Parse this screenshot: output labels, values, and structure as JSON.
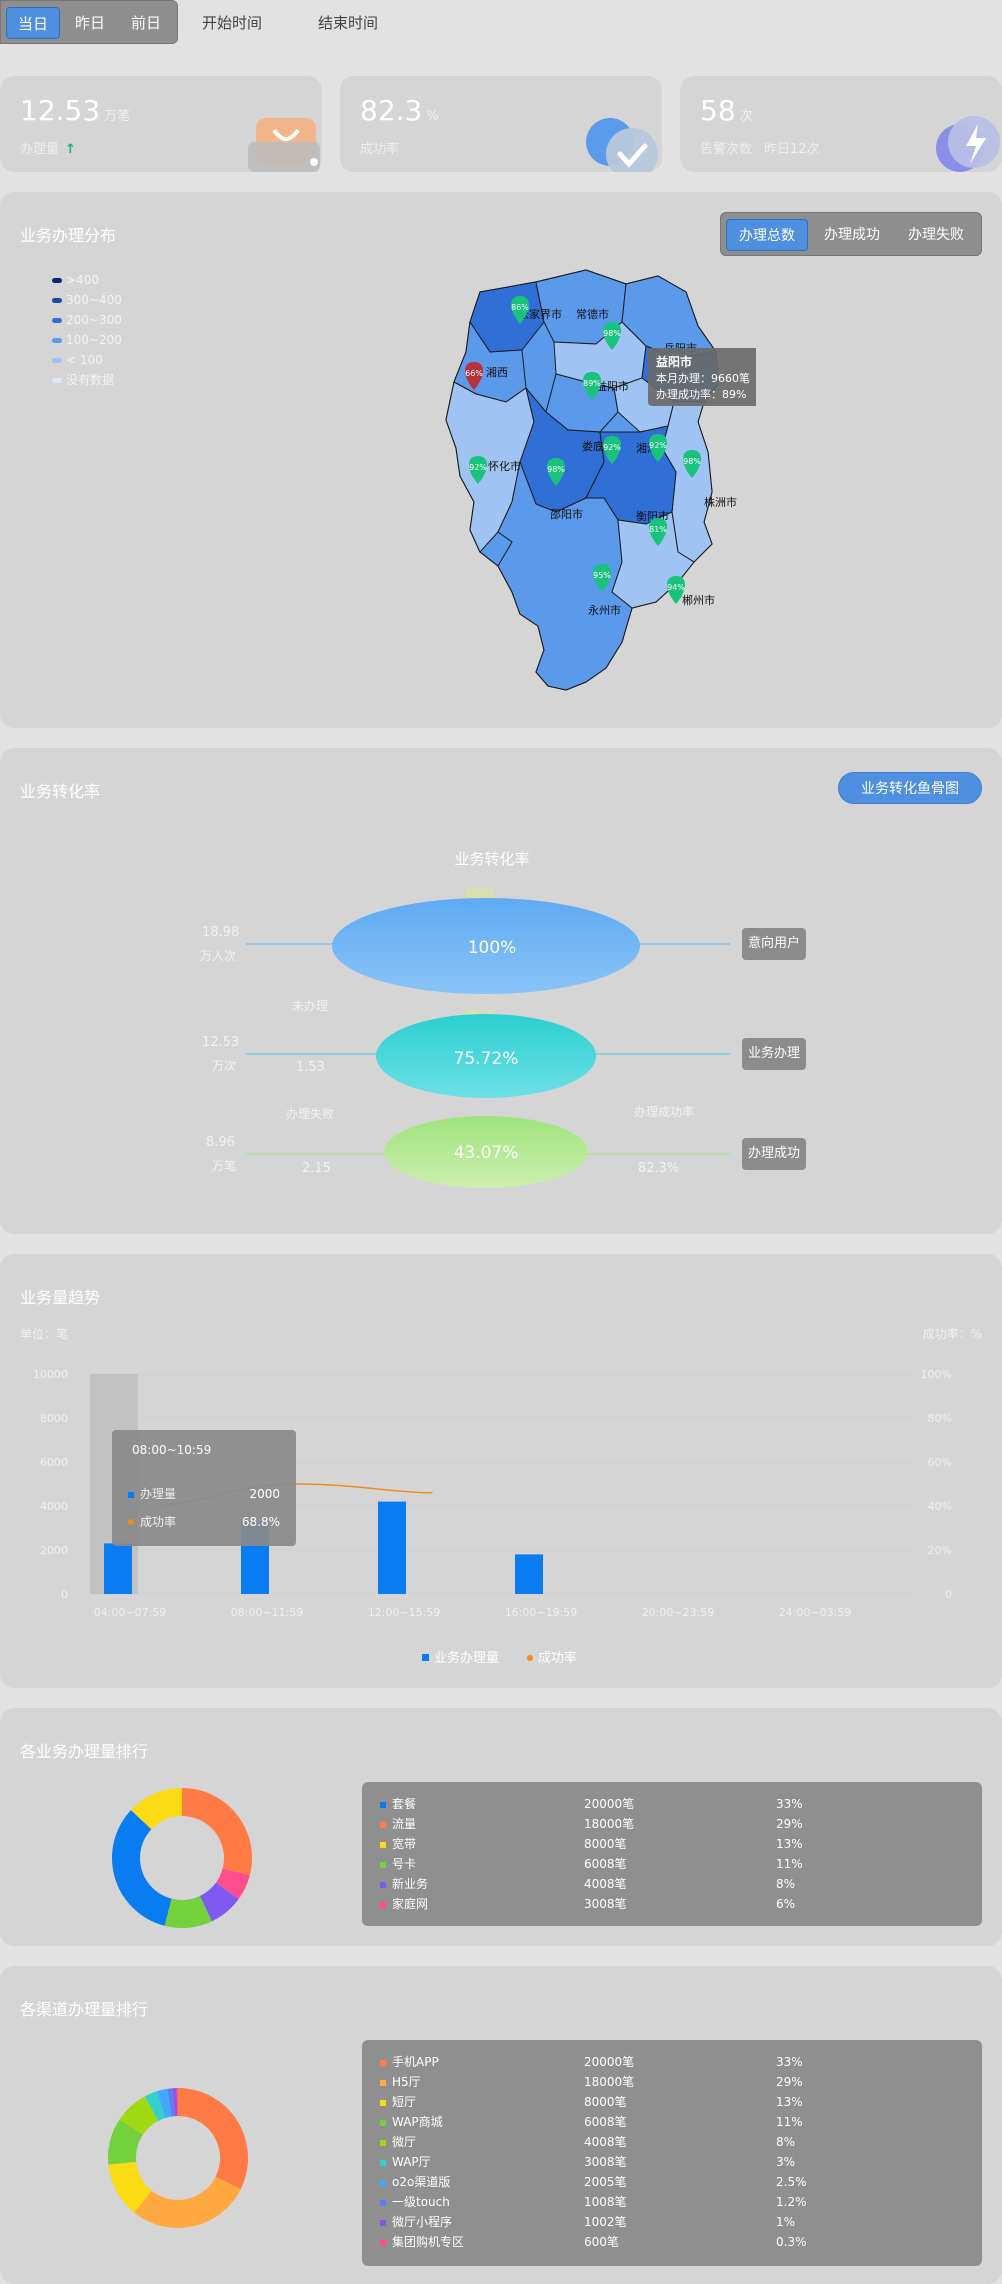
{
  "topbar": {
    "day_tabs": [
      "当日",
      "昨日",
      "前日"
    ],
    "start_label": "开始时间",
    "end_label": "结束时间"
  },
  "stats": [
    {
      "value": "12.53",
      "unit": "万笔",
      "label": "办理量",
      "extra": "",
      "icon": "shopping-bag-icon"
    },
    {
      "value": "82.3",
      "unit": "%",
      "label": "成功率",
      "extra": "",
      "icon": "check-circle-icon"
    },
    {
      "value": "58",
      "unit": "次",
      "label": "告警次数",
      "extra": "昨日12次",
      "icon": "lightning-icon"
    }
  ],
  "map_section": {
    "title": "业务办理分布",
    "tabs": [
      "办理总数",
      "办理成功",
      "办理失败"
    ],
    "legend": [
      {
        "label": ">400",
        "color": "#0b2a6e"
      },
      {
        "label": "300~400",
        "color": "#1a4aa3"
      },
      {
        "label": "200~300",
        "color": "#2f6fd6"
      },
      {
        "label": "100~200",
        "color": "#5b99ea"
      },
      {
        "label": "< 100",
        "color": "#9fc3f2"
      },
      {
        "label": "没有数据",
        "color": "#dde6f2"
      }
    ],
    "cities": [
      "张家界市",
      "常德市",
      "岳阳市",
      "湘西",
      "益阳市",
      "怀化市",
      "娄底市",
      "湘潭",
      "株洲市",
      "邵阳市",
      "衡阳市",
      "永州市",
      "郴州市"
    ],
    "pins": [
      "86%",
      "98%",
      "66%",
      "89%",
      "92%",
      "98%",
      "92%",
      "92%",
      "98%",
      "81%",
      "95%",
      "94%"
    ],
    "tooltip": {
      "title": "益阳市",
      "line1": "本月办理：9660笔",
      "line2": "办理成功率：89%"
    }
  },
  "funnel_section": {
    "title": "业务转化率",
    "button": "业务转化鱼骨图",
    "chart_title": "业务转化率",
    "levels": [
      {
        "value": "18.98",
        "unit": "万人次",
        "percent": "100%",
        "tag": "意向用户"
      },
      {
        "value": "12.53",
        "unit": "万次",
        "percent": "75.72%",
        "tag": "业务办理"
      },
      {
        "value": "8.96",
        "unit": "万笔",
        "percent": "43.07%",
        "tag": "办理成功"
      }
    ],
    "not_done_label": "未办理",
    "not_done_value": "1.53",
    "fail_label": "办理失败",
    "fail_value": "2.15",
    "success_rate_label": "办理成功率",
    "success_rate_value": "82.3%"
  },
  "trend_section": {
    "title": "业务量趋势",
    "left_unit": "单位：笔",
    "right_unit": "成功率：%",
    "tooltip": {
      "title": "08:00~10:59",
      "row1_label": "办理量",
      "row1_value": "2000",
      "row2_label": "成功率",
      "row2_value": "68.8%"
    },
    "legend": [
      "业务办理量",
      "成功率"
    ]
  },
  "chart_data": {
    "type": "bar",
    "categories": [
      "04:00~07:59",
      "08:00~11:59",
      "12:00~15:59",
      "16:00~19:59",
      "20:00~23:59",
      "24:00~03:59"
    ],
    "series": [
      {
        "name": "业务办理量",
        "type": "bar",
        "values": [
          2300,
          3300,
          4200,
          1800,
          0,
          0
        ],
        "color": "#0a7cf2"
      },
      {
        "name": "成功率",
        "type": "line",
        "x": [
          0.5,
          1.5,
          2.5
        ],
        "values": [
          40,
          50,
          46
        ],
        "color": "#f08c1e"
      }
    ],
    "y_left": {
      "ticks": [
        0,
        2000,
        4000,
        6000,
        8000,
        10000
      ],
      "range": [
        0,
        10000
      ]
    },
    "y_right": {
      "ticks": [
        "0",
        "20%",
        "40%",
        "60%",
        "80%",
        "100%"
      ],
      "range": [
        0,
        100
      ]
    }
  },
  "biz_rank": {
    "title": "各业务办理量排行",
    "items": [
      {
        "name": "套餐",
        "count": "20000笔",
        "pct": "33%",
        "share": 33,
        "color": "#0a7cf2"
      },
      {
        "name": "流量",
        "count": "18000笔",
        "pct": "29%",
        "share": 29,
        "color": "#ff7a45"
      },
      {
        "name": "宽带",
        "count": "8000笔",
        "pct": "13%",
        "share": 13,
        "color": "#fadb14"
      },
      {
        "name": "号卡",
        "count": "6008笔",
        "pct": "11%",
        "share": 11,
        "color": "#73d13d"
      },
      {
        "name": "新业务",
        "count": "4008笔",
        "pct": "8%",
        "share": 8,
        "color": "#7f5af0"
      },
      {
        "name": "家庭网",
        "count": "3008笔",
        "pct": "6%",
        "share": 6,
        "color": "#ff4d8d"
      }
    ]
  },
  "channel_rank": {
    "title": "各渠道办理量排行",
    "items": [
      {
        "name": "手机APP",
        "count": "20000笔",
        "pct": "33%",
        "share": 33,
        "color": "#ff7a45"
      },
      {
        "name": "H5厅",
        "count": "18000笔",
        "pct": "29%",
        "share": 29,
        "color": "#ffa940"
      },
      {
        "name": "短厅",
        "count": "8000笔",
        "pct": "13%",
        "share": 13,
        "color": "#fadb14"
      },
      {
        "name": "WAP商城",
        "count": "6008笔",
        "pct": "11%",
        "share": 11,
        "color": "#73d13d"
      },
      {
        "name": "微厅",
        "count": "4008笔",
        "pct": "8%",
        "share": 8,
        "color": "#a0d911"
      },
      {
        "name": "WAP厅",
        "count": "3008笔",
        "pct": "3%",
        "share": 3,
        "color": "#36cfc9"
      },
      {
        "name": "o2o渠道版",
        "count": "2005笔",
        "pct": "2.5%",
        "share": 2.5,
        "color": "#40a9ff"
      },
      {
        "name": "一级touch",
        "count": "1008笔",
        "pct": "1.2%",
        "share": 1.2,
        "color": "#597ef7"
      },
      {
        "name": "微厅小程序",
        "count": "1002笔",
        "pct": "1%",
        "share": 1,
        "color": "#9254de"
      },
      {
        "name": "集团购机专区",
        "count": "600笔",
        "pct": "0.3%",
        "share": 0.3,
        "color": "#ff4d8d"
      }
    ]
  }
}
